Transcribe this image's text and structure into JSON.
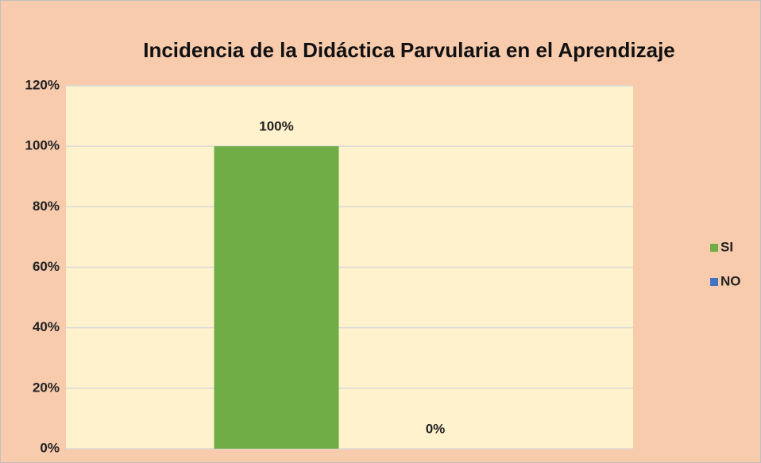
{
  "chart_data": {
    "type": "bar",
    "title": "Incidencia de la Didáctica Parvularia en el Aprendizaje",
    "categories": [
      null
    ],
    "series": [
      {
        "name": "SI",
        "color": "#70ad47",
        "values": [
          100
        ],
        "value_labels": [
          "100%"
        ]
      },
      {
        "name": "NO",
        "color": "#4472c4",
        "values": [
          0
        ],
        "value_labels": [
          "0%"
        ]
      }
    ],
    "ylim": [
      0,
      120
    ],
    "yticks": [
      {
        "value": 0,
        "label": "0%"
      },
      {
        "value": 20,
        "label": "20%"
      },
      {
        "value": 40,
        "label": "40%"
      },
      {
        "value": 60,
        "label": "60%"
      },
      {
        "value": 80,
        "label": "80%"
      },
      {
        "value": 100,
        "label": "100%"
      },
      {
        "value": 120,
        "label": "120%"
      }
    ],
    "grid": true,
    "legend": "right"
  }
}
